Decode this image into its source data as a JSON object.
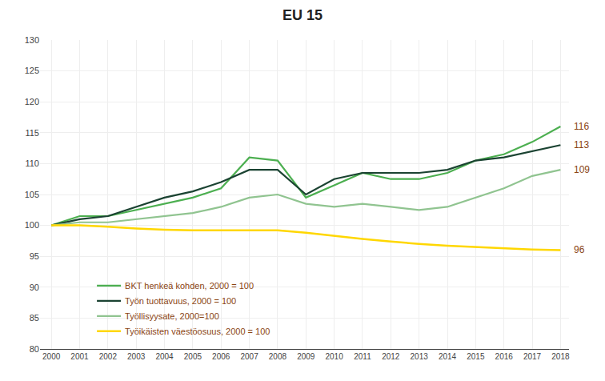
{
  "chart_data": {
    "type": "line",
    "title": "EU 15",
    "x": [
      2000,
      2001,
      2002,
      2003,
      2004,
      2005,
      2006,
      2007,
      2008,
      2009,
      2010,
      2011,
      2012,
      2013,
      2014,
      2015,
      2016,
      2017,
      2018
    ],
    "series": [
      {
        "name": "BKT henkeä kohden, 2000 = 100",
        "color": "#4CAF50",
        "values": [
          100,
          101.5,
          101.5,
          102.5,
          103.5,
          104.5,
          106.0,
          111.0,
          110.5,
          104.5,
          106.5,
          108.5,
          107.5,
          107.5,
          108.5,
          110.5,
          111.5,
          113.5,
          116.0
        ]
      },
      {
        "name": "Työn tuottavuus, 2000 = 100",
        "color": "#1B4332",
        "values": [
          100,
          101.0,
          101.5,
          103.0,
          104.5,
          105.5,
          107.0,
          109.0,
          109.0,
          105.0,
          107.5,
          108.5,
          108.5,
          108.5,
          109.0,
          110.5,
          111.0,
          112.0,
          113.0
        ]
      },
      {
        "name": "Työllisyysate, 2000=100",
        "color": "#90C490",
        "values": [
          100,
          100.5,
          100.5,
          101.0,
          101.5,
          102.0,
          103.0,
          104.5,
          105.0,
          103.5,
          103.0,
          103.5,
          103.0,
          102.5,
          103.0,
          104.5,
          106.0,
          108.0,
          109.0
        ]
      },
      {
        "name": "Työikäisten väestöosuus, 2000 = 100",
        "color": "#FFD700",
        "values": [
          100,
          100.0,
          99.8,
          99.5,
          99.3,
          99.2,
          99.2,
          99.2,
          99.2,
          98.8,
          98.3,
          97.8,
          97.4,
          97.0,
          96.7,
          96.5,
          96.3,
          96.1,
          96.0
        ]
      }
    ],
    "xlim": [
      1999.6,
      2018.3
    ],
    "xticks": [
      2000,
      2001,
      2002,
      2003,
      2004,
      2005,
      2006,
      2007,
      2008,
      2009,
      2010,
      2011,
      2012,
      2013,
      2014,
      2015,
      2016,
      2017,
      2018
    ],
    "ylim": [
      80,
      130
    ],
    "yticks": [
      80,
      85,
      90,
      95,
      100,
      105,
      110,
      115,
      120,
      125,
      130
    ],
    "grid": true,
    "legend": "lower left",
    "annotations": [
      {
        "text": "116",
        "y": 116.0
      },
      {
        "text": "113",
        "y": 113.0
      },
      {
        "text": "109",
        "y": 109.0
      },
      {
        "text": "96",
        "y": 96.0
      }
    ]
  }
}
